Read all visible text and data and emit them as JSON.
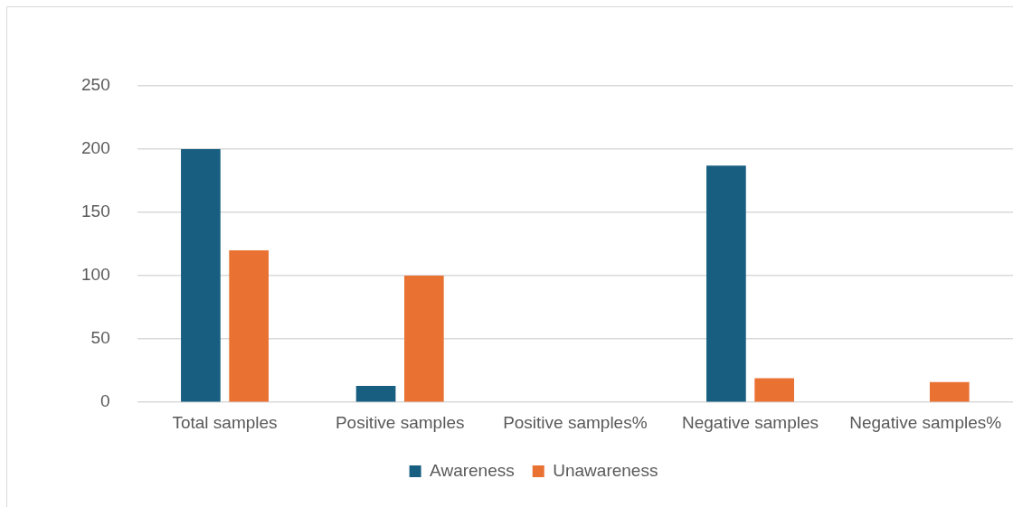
{
  "chart_data": {
    "type": "bar",
    "categories": [
      "Total samples",
      "Positive samples",
      "Positive samples%",
      "Negative samples",
      "Negative samples%"
    ],
    "series": [
      {
        "name": "Awareness",
        "color": "#175e80",
        "values": [
          200,
          13,
          0,
          187,
          null
        ]
      },
      {
        "name": "Unawareness",
        "color": "#e97132",
        "values": [
          120,
          100,
          null,
          19,
          16
        ]
      }
    ],
    "ylim": [
      0,
      250
    ],
    "yticks": [
      0,
      50,
      100,
      150,
      200,
      250
    ],
    "grid": "y",
    "legend": "bottom"
  }
}
